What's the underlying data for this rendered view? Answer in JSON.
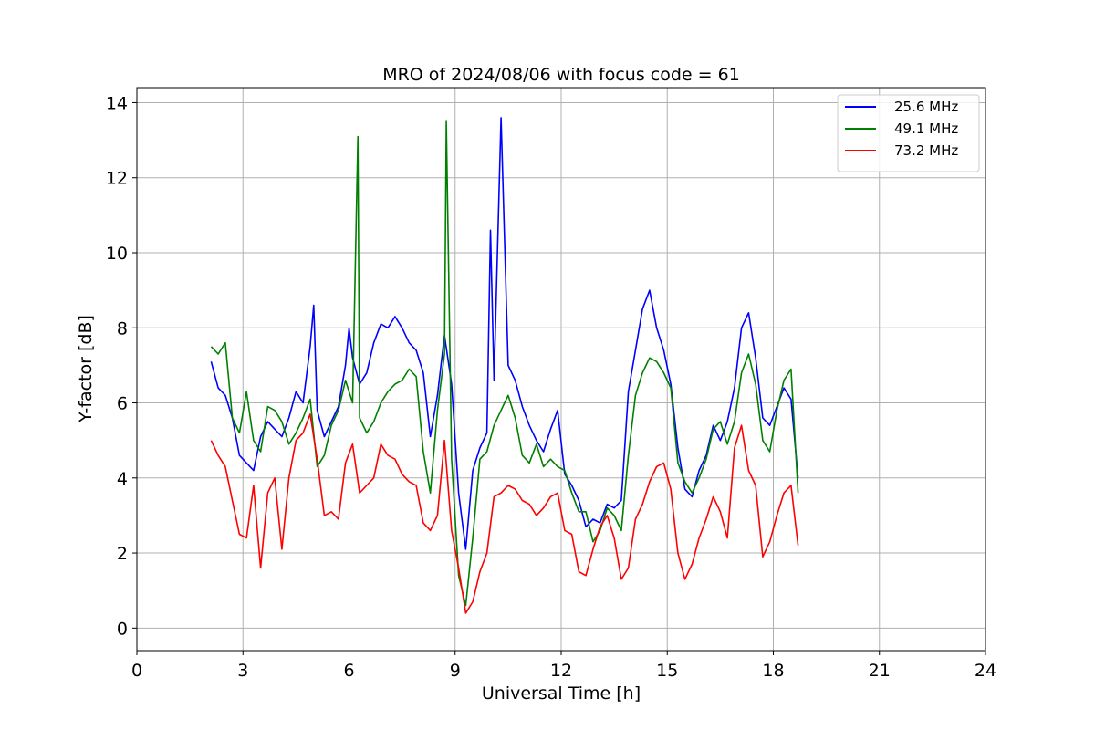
{
  "chart_data": {
    "type": "line",
    "title": "MRO of 2024/08/06 with focus code = 61",
    "xlabel": "Universal Time [h]",
    "ylabel": "Y-factor [dB]",
    "xlim": [
      0,
      24
    ],
    "ylim": [
      -0.6,
      14.4
    ],
    "xticks": [
      0,
      3,
      6,
      9,
      12,
      15,
      18,
      21,
      24
    ],
    "yticks": [
      0,
      2,
      4,
      6,
      8,
      10,
      12,
      14
    ],
    "grid": true,
    "legend_position": "top-right",
    "series": [
      {
        "name": "25.6 MHz",
        "color": "#0000ff",
        "x": [
          2.1,
          2.3,
          2.5,
          2.7,
          2.9,
          3.1,
          3.3,
          3.5,
          3.7,
          3.9,
          4.1,
          4.3,
          4.5,
          4.7,
          4.9,
          5.0,
          5.1,
          5.3,
          5.5,
          5.7,
          5.9,
          6.0,
          6.1,
          6.3,
          6.5,
          6.7,
          6.9,
          7.1,
          7.3,
          7.5,
          7.7,
          7.9,
          8.1,
          8.3,
          8.5,
          8.7,
          8.9,
          9.1,
          9.3,
          9.5,
          9.7,
          9.9,
          10.0,
          10.1,
          10.3,
          10.5,
          10.7,
          10.9,
          11.1,
          11.3,
          11.5,
          11.7,
          11.9,
          12.1,
          12.3,
          12.5,
          12.7,
          12.9,
          13.1,
          13.3,
          13.5,
          13.7,
          13.9,
          14.1,
          14.3,
          14.5,
          14.7,
          14.9,
          15.1,
          15.3,
          15.5,
          15.7,
          15.9,
          16.1,
          16.3,
          16.5,
          16.7,
          16.9,
          17.1,
          17.3,
          17.5,
          17.7,
          17.9,
          18.1,
          18.3,
          18.5,
          18.7
        ],
        "values": [
          7.1,
          6.4,
          6.2,
          5.6,
          4.6,
          4.4,
          4.2,
          5.1,
          5.5,
          5.3,
          5.1,
          5.6,
          6.3,
          6.0,
          7.5,
          8.6,
          5.8,
          5.1,
          5.5,
          5.9,
          7.0,
          8.0,
          7.2,
          6.5,
          6.8,
          7.6,
          8.1,
          8.0,
          8.3,
          8.0,
          7.6,
          7.4,
          6.8,
          5.1,
          6.2,
          7.8,
          6.5,
          3.6,
          2.1,
          4.2,
          4.8,
          5.2,
          10.6,
          6.6,
          13.6,
          7.0,
          6.6,
          5.9,
          5.4,
          5.0,
          4.7,
          5.3,
          5.8,
          4.1,
          3.8,
          3.4,
          2.7,
          2.9,
          2.8,
          3.3,
          3.2,
          3.4,
          6.3,
          7.4,
          8.5,
          9.0,
          8.0,
          7.4,
          6.5,
          4.8,
          3.7,
          3.5,
          4.2,
          4.6,
          5.4,
          5.0,
          5.5,
          6.4,
          8.0,
          8.4,
          7.2,
          5.6,
          5.4,
          5.9,
          6.4,
          6.1,
          4.0
        ]
      },
      {
        "name": "49.1 MHz",
        "color": "#008000",
        "x": [
          2.1,
          2.3,
          2.5,
          2.7,
          2.9,
          3.1,
          3.3,
          3.5,
          3.7,
          3.9,
          4.1,
          4.3,
          4.5,
          4.7,
          4.9,
          5.1,
          5.3,
          5.5,
          5.7,
          5.9,
          6.1,
          6.25,
          6.3,
          6.5,
          6.7,
          6.9,
          7.1,
          7.3,
          7.5,
          7.7,
          7.9,
          8.1,
          8.3,
          8.5,
          8.7,
          8.75,
          8.9,
          9.1,
          9.3,
          9.5,
          9.7,
          9.9,
          10.1,
          10.3,
          10.5,
          10.7,
          10.9,
          11.1,
          11.3,
          11.5,
          11.7,
          11.9,
          12.1,
          12.3,
          12.5,
          12.7,
          12.9,
          13.1,
          13.3,
          13.5,
          13.7,
          13.9,
          14.1,
          14.3,
          14.5,
          14.7,
          14.9,
          15.1,
          15.3,
          15.5,
          15.7,
          15.9,
          16.1,
          16.3,
          16.5,
          16.7,
          16.9,
          17.1,
          17.3,
          17.5,
          17.7,
          17.9,
          18.1,
          18.3,
          18.5,
          18.7
        ],
        "values": [
          7.5,
          7.3,
          7.6,
          5.6,
          5.2,
          6.3,
          5.0,
          4.7,
          5.9,
          5.8,
          5.5,
          4.9,
          5.2,
          5.6,
          6.1,
          4.3,
          4.6,
          5.4,
          5.8,
          6.6,
          6.0,
          13.1,
          5.6,
          5.2,
          5.5,
          6.0,
          6.3,
          6.5,
          6.6,
          6.9,
          6.7,
          4.7,
          3.6,
          5.8,
          7.3,
          13.5,
          4.5,
          1.4,
          0.6,
          2.4,
          4.5,
          4.7,
          5.4,
          5.8,
          6.2,
          5.6,
          4.6,
          4.4,
          4.9,
          4.3,
          4.5,
          4.3,
          4.2,
          3.6,
          3.1,
          3.1,
          2.3,
          2.6,
          3.2,
          3.0,
          2.6,
          4.6,
          6.2,
          6.8,
          7.2,
          7.1,
          6.8,
          6.4,
          4.4,
          3.9,
          3.6,
          4.0,
          4.5,
          5.3,
          5.5,
          4.9,
          5.5,
          6.8,
          7.3,
          6.5,
          5.0,
          4.7,
          5.8,
          6.6,
          6.9,
          3.6
        ]
      },
      {
        "name": "73.2 MHz",
        "color": "#ff0000",
        "x": [
          2.1,
          2.3,
          2.5,
          2.7,
          2.9,
          3.1,
          3.3,
          3.5,
          3.7,
          3.9,
          4.1,
          4.3,
          4.5,
          4.7,
          4.9,
          5.1,
          5.3,
          5.5,
          5.7,
          5.9,
          6.1,
          6.3,
          6.5,
          6.7,
          6.9,
          7.1,
          7.3,
          7.5,
          7.7,
          7.9,
          8.1,
          8.3,
          8.5,
          8.7,
          8.9,
          9.1,
          9.3,
          9.5,
          9.7,
          9.9,
          10.1,
          10.3,
          10.5,
          10.7,
          10.9,
          11.1,
          11.3,
          11.5,
          11.7,
          11.9,
          12.1,
          12.3,
          12.5,
          12.7,
          12.9,
          13.1,
          13.3,
          13.5,
          13.7,
          13.9,
          14.1,
          14.3,
          14.5,
          14.7,
          14.9,
          15.1,
          15.3,
          15.5,
          15.7,
          15.9,
          16.1,
          16.3,
          16.5,
          16.7,
          16.9,
          17.1,
          17.3,
          17.5,
          17.7,
          17.9,
          18.1,
          18.3,
          18.5,
          18.7
        ],
        "values": [
          5.0,
          4.6,
          4.3,
          3.4,
          2.5,
          2.4,
          3.8,
          1.6,
          3.6,
          4.0,
          2.1,
          4.0,
          5.0,
          5.2,
          5.7,
          4.5,
          3.0,
          3.1,
          2.9,
          4.4,
          4.9,
          3.6,
          3.8,
          4.0,
          4.9,
          4.6,
          4.5,
          4.1,
          3.9,
          3.8,
          2.8,
          2.6,
          3.0,
          5.0,
          2.6,
          1.6,
          0.4,
          0.7,
          1.5,
          2.0,
          3.5,
          3.6,
          3.8,
          3.7,
          3.4,
          3.3,
          3.0,
          3.2,
          3.5,
          3.6,
          2.6,
          2.5,
          1.5,
          1.4,
          2.1,
          2.7,
          3.0,
          2.4,
          1.3,
          1.6,
          2.9,
          3.3,
          3.9,
          4.3,
          4.4,
          3.7,
          2.0,
          1.3,
          1.7,
          2.4,
          2.9,
          3.5,
          3.1,
          2.4,
          4.8,
          5.4,
          4.2,
          3.8,
          1.9,
          2.3,
          3.0,
          3.6,
          3.8,
          2.2
        ]
      }
    ]
  }
}
